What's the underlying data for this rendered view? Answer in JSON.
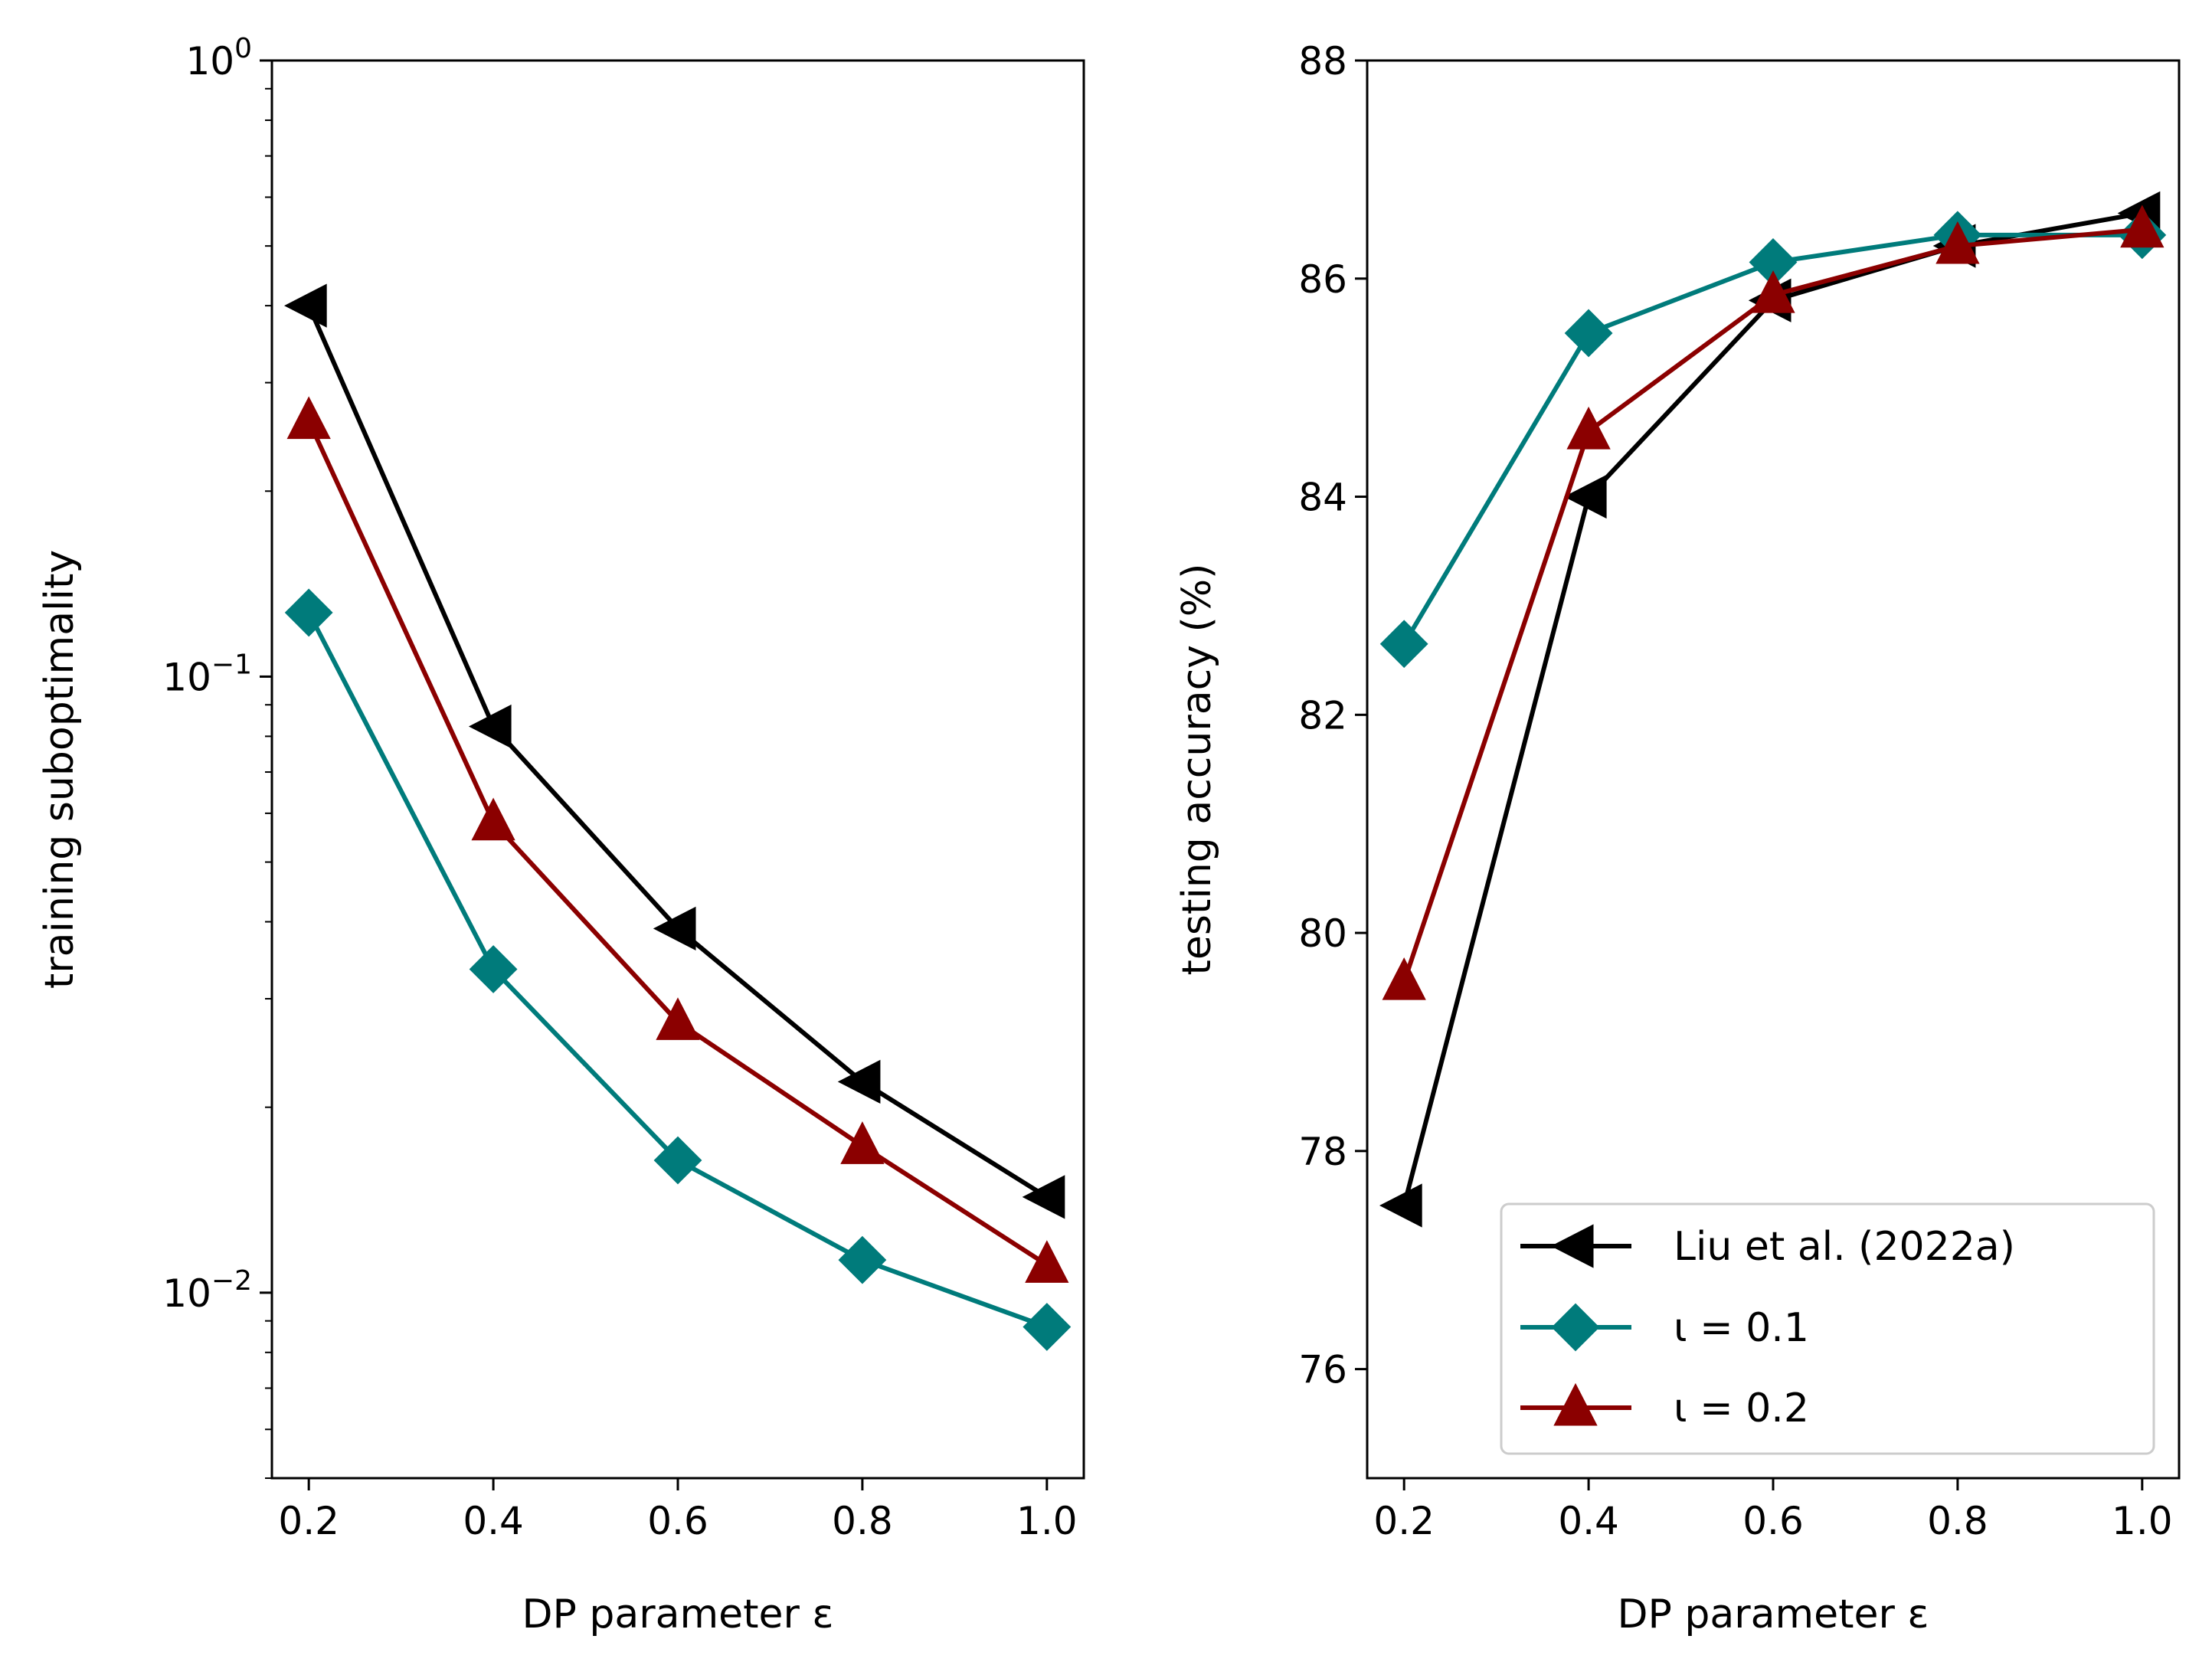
{
  "chart_data": [
    {
      "type": "line",
      "yscale": "log",
      "title": "",
      "xlabel": "DP parameter ε",
      "ylabel": "training suboptimality",
      "xlim": [
        0.16,
        1.04
      ],
      "ylim": [
        0.005,
        1.0
      ],
      "grid": false,
      "x": [
        0.2,
        0.4,
        0.6,
        0.8,
        1.0
      ],
      "x_tick_labels": [
        "0.2",
        "0.4",
        "0.6",
        "0.8",
        "1.0"
      ],
      "y_major_ticks": [
        {
          "value": 0.01,
          "base": "10",
          "exp": "−2"
        },
        {
          "value": 0.1,
          "base": "10",
          "exp": "−1"
        },
        {
          "value": 1.0,
          "base": "10",
          "exp": "0"
        }
      ],
      "y_minor_ticks": [
        0.005,
        0.006,
        0.007,
        0.008,
        0.009,
        0.02,
        0.03,
        0.04,
        0.05,
        0.06,
        0.07,
        0.08,
        0.09,
        0.2,
        0.3,
        0.4,
        0.5,
        0.6,
        0.7,
        0.8,
        0.9
      ],
      "series": [
        {
          "name": "Liu et al. (2022a)",
          "color": "#000000",
          "marker": "triangle-left",
          "values": [
            0.4,
            0.083,
            0.039,
            0.022,
            0.0143
          ]
        },
        {
          "name": "ι = 0.1",
          "color": "#007b7b",
          "marker": "diamond",
          "values": [
            0.127,
            0.0335,
            0.0164,
            0.0113,
            0.0088
          ]
        },
        {
          "name": "ι = 0.2",
          "color": "#8b0000",
          "marker": "triangle-up",
          "values": [
            0.26,
            0.058,
            0.0275,
            0.0173,
            0.0111
          ]
        }
      ]
    },
    {
      "type": "line",
      "yscale": "linear",
      "title": "",
      "xlabel": "DP parameter ε",
      "ylabel": "testing accuracy (%)",
      "xlim": [
        0.16,
        1.04
      ],
      "ylim": [
        75,
        88
      ],
      "grid": false,
      "legend_position": "lower-right",
      "x": [
        0.2,
        0.4,
        0.6,
        0.8,
        1.0
      ],
      "x_tick_labels": [
        "0.2",
        "0.4",
        "0.6",
        "0.8",
        "1.0"
      ],
      "y_ticks": [
        76,
        78,
        80,
        82,
        84,
        86,
        88
      ],
      "y_tick_labels": [
        "76",
        "78",
        "80",
        "82",
        "84",
        "86",
        "88"
      ],
      "series": [
        {
          "name": "Liu et al. (2022a)",
          "color": "#000000",
          "marker": "triangle-left",
          "values": [
            77.5,
            84.0,
            85.8,
            86.3,
            86.6
          ]
        },
        {
          "name": "ι = 0.1",
          "color": "#007b7b",
          "marker": "diamond",
          "values": [
            82.65,
            85.5,
            86.15,
            86.4,
            86.4
          ]
        },
        {
          "name": "ι = 0.2",
          "color": "#8b0000",
          "marker": "triangle-up",
          "values": [
            79.55,
            84.6,
            85.85,
            86.3,
            86.45
          ]
        }
      ]
    }
  ]
}
